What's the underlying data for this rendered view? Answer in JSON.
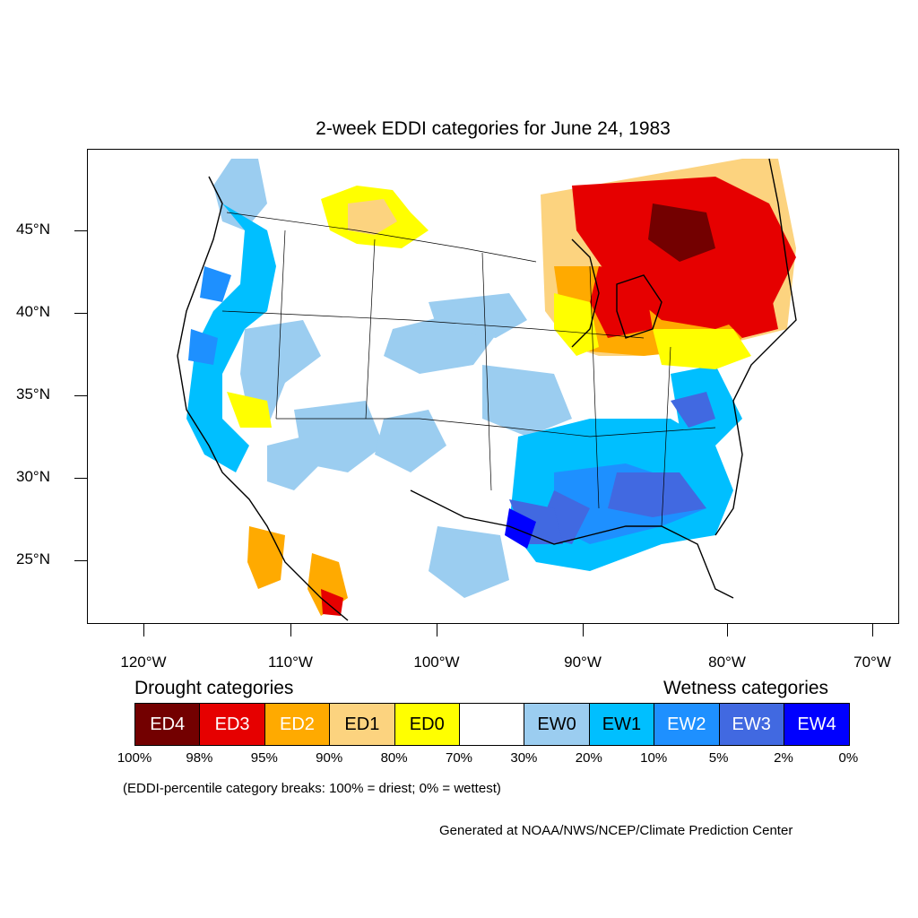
{
  "title": "2-week EDDI categories for June 24, 1983",
  "lat_labels": [
    "45°N",
    "40°N",
    "35°N",
    "30°N",
    "25°N"
  ],
  "lon_labels": [
    "120°W",
    "110°W",
    "100°W",
    "90°W",
    "80°W",
    "70°W"
  ],
  "legend": {
    "drought_heading": "Drought categories",
    "wetness_heading": "Wetness categories",
    "categories": [
      {
        "label": "ED4",
        "color": "#730000",
        "text_color": "#ffffff"
      },
      {
        "label": "ED3",
        "color": "#e60000",
        "text_color": "#ffffff"
      },
      {
        "label": "ED2",
        "color": "#ffaa00",
        "text_color": "#ffffff"
      },
      {
        "label": "ED1",
        "color": "#fcd37f",
        "text_color": "#000000"
      },
      {
        "label": "ED0",
        "color": "#ffff00",
        "text_color": "#000000"
      },
      {
        "label": "",
        "color": "#ffffff",
        "text_color": "#000000"
      },
      {
        "label": "EW0",
        "color": "#9bcdf0",
        "text_color": "#000000"
      },
      {
        "label": "EW1",
        "color": "#00bfff",
        "text_color": "#000000"
      },
      {
        "label": "EW2",
        "color": "#1e90ff",
        "text_color": "#ffffff"
      },
      {
        "label": "EW3",
        "color": "#4169e1",
        "text_color": "#ffffff"
      },
      {
        "label": "EW4",
        "color": "#0000ff",
        "text_color": "#ffffff"
      }
    ],
    "breaks": [
      "100%",
      "98%",
      "95%",
      "90%",
      "80%",
      "70%",
      "30%",
      "20%",
      "10%",
      "5%",
      "2%",
      "0%"
    ]
  },
  "note": "(EDDI-percentile category breaks: 100% = driest; 0% = wettest)",
  "credit": "Generated at NOAA/NWS/NCEP/Climate Prediction Center"
}
